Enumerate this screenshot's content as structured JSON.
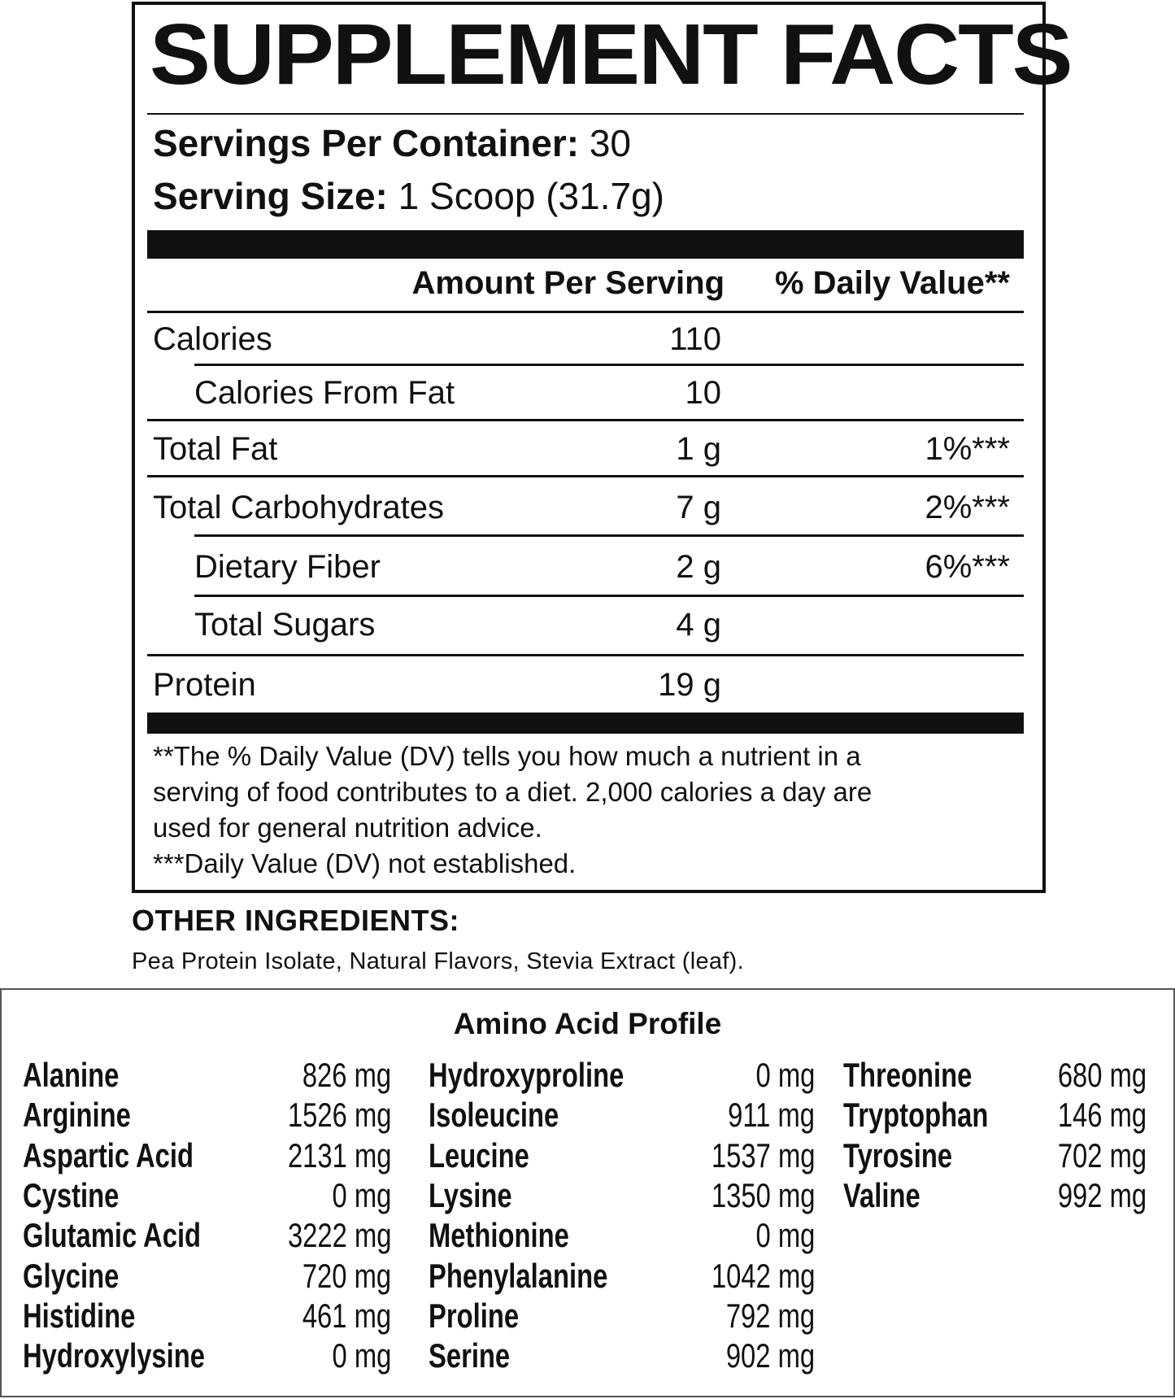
{
  "title": "SUPPLEMENT FACTS",
  "servings": {
    "label": "Servings Per Container:",
    "value": "30"
  },
  "serving_size": {
    "label": "Serving Size:",
    "value": "1 Scoop (31.7g)"
  },
  "header": {
    "amount": "Amount Per Serving",
    "dv": "% Daily Value**"
  },
  "rows": [
    {
      "name": "Calories",
      "amount": "110",
      "dv": "",
      "indent": false
    },
    {
      "name": "Calories From Fat",
      "amount": "10",
      "dv": "",
      "indent": true
    },
    {
      "name": "Total Fat",
      "amount": "1 g",
      "dv": "1%***",
      "indent": false
    },
    {
      "name": "Total Carbohydrates",
      "amount": "7 g",
      "dv": "2%***",
      "indent": false
    },
    {
      "name": "Dietary Fiber",
      "amount": "2 g",
      "dv": "6%***",
      "indent": true
    },
    {
      "name": "Total Sugars",
      "amount": "4 g",
      "dv": "",
      "indent": true
    },
    {
      "name": "Protein",
      "amount": "19 g",
      "dv": "",
      "indent": false
    }
  ],
  "footnotes": [
    "**The % Daily Value (DV) tells you how much a nutrient in a",
    "serving of food contributes to a diet. 2,000 calories a day are",
    "used for general nutrition advice.",
    "***Daily Value (DV) not established."
  ],
  "other_ingredients": {
    "heading": "OTHER INGREDIENTS:",
    "text": "Pea Protein Isolate, Natural Flavors, Stevia Extract (leaf)."
  },
  "amino": {
    "title": "Amino Acid Profile",
    "columns": [
      [
        [
          "Alanine",
          "826 mg"
        ],
        [
          "Arginine",
          "1526 mg"
        ],
        [
          "Aspartic Acid",
          "2131 mg"
        ],
        [
          "Cystine",
          "0 mg"
        ],
        [
          "Glutamic Acid",
          "3222 mg"
        ],
        [
          "Glycine",
          "720 mg"
        ],
        [
          "Histidine",
          "461 mg"
        ],
        [
          "Hydroxylysine",
          "0 mg"
        ]
      ],
      [
        [
          "Hydroxyproline",
          "0 mg"
        ],
        [
          "Isoleucine",
          "911 mg"
        ],
        [
          "Leucine",
          "1537 mg"
        ],
        [
          "Lysine",
          "1350 mg"
        ],
        [
          "Methionine",
          "0 mg"
        ],
        [
          "Phenylalanine",
          "1042 mg"
        ],
        [
          "Proline",
          "792 mg"
        ],
        [
          "Serine",
          "902 mg"
        ]
      ],
      [
        [
          "Threonine",
          "680 mg"
        ],
        [
          "Tryptophan",
          "146 mg"
        ],
        [
          "Tyrosine",
          "702 mg"
        ],
        [
          "Valine",
          "992 mg"
        ]
      ]
    ]
  }
}
